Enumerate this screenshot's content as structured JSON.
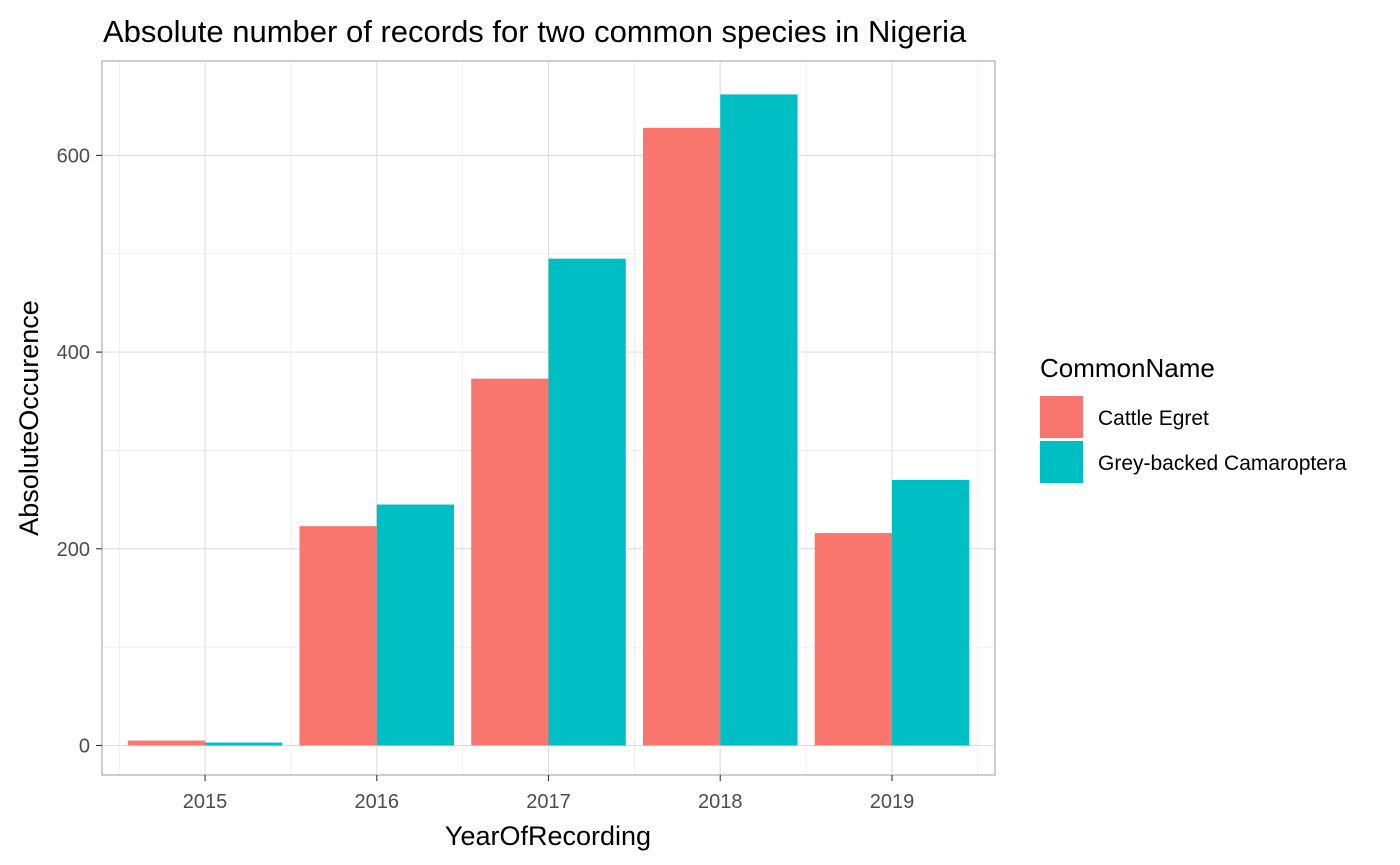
{
  "chart_data": {
    "type": "bar",
    "title": "Absolute number of records for two common species in Nigeria",
    "xlabel": "YearOfRecording",
    "ylabel": "AbsoluteOccurence",
    "categories": [
      "2015",
      "2016",
      "2017",
      "2018",
      "2019"
    ],
    "series": [
      {
        "name": "Cattle Egret",
        "color": "#F8766D",
        "values": [
          5,
          223,
          373,
          628,
          216
        ]
      },
      {
        "name": "Grey-backed Camaroptera",
        "color": "#00BFC4",
        "values": [
          3,
          245,
          495,
          662,
          270
        ]
      }
    ],
    "ylim": [
      -30,
      696
    ],
    "yticks": [
      0,
      200,
      400,
      600
    ],
    "ytick_labels": [
      "0",
      "200",
      "400",
      "600"
    ],
    "grid": true,
    "legend": {
      "title": "CommonName",
      "position": "right"
    }
  }
}
